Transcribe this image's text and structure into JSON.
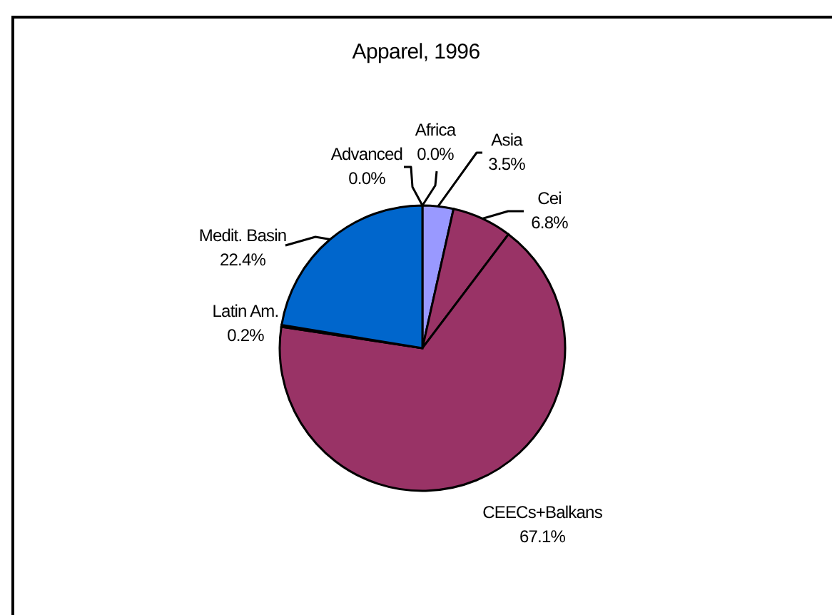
{
  "chart_data": {
    "type": "pie",
    "title": "Apparel, 1996",
    "categories": [
      "Africa",
      "Asia",
      "Cei",
      "CEECs+Balkans",
      "Latin Am.",
      "Medit. Basin",
      "Advanced"
    ],
    "values": [
      0,
      3.5,
      6.8,
      67.1,
      0.2,
      22.4,
      0
    ],
    "colors": [
      "#9999ff",
      "#9999ff",
      "#993366",
      "#993366",
      "#ffffcc",
      "#0066cc",
      "#0066cc"
    ],
    "value_labels": [
      "0.0%",
      "3.5%",
      "6.8%",
      "67.1%",
      "0.2%",
      "22.4%",
      "0.0%"
    ]
  }
}
